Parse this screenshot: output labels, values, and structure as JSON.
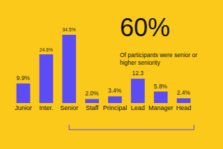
{
  "chart_data": {
    "type": "bar",
    "annotations": [
      "60%",
      "Of participants were senior or higher seniority"
    ],
    "categories": [
      "Junior",
      "Inter.",
      "Senior",
      "Staff",
      "Principal",
      "Lead",
      "Manager",
      "Head"
    ],
    "values": [
      9.9,
      24.6,
      34.5,
      2.0,
      3.4,
      12.3,
      5.8,
      2.4
    ],
    "value_labels": [
      "9.9%",
      "24.6%",
      "34.5%",
      "2.0%",
      "3.4%",
      "12.3",
      "5.8%",
      "2.4%"
    ],
    "data_labels": true,
    "tick_labels": "x",
    "grid": false,
    "color": "#5B4CF5"
  }
}
